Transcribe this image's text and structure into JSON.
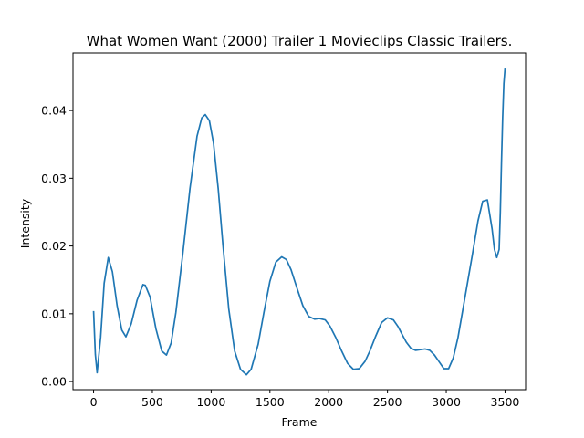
{
  "chart_data": {
    "type": "line",
    "title": "What Women Want (2000) Trailer 1  Movieclips Classic Trailers.",
    "xlabel": "Frame",
    "ylabel": "Intensity",
    "xlim": [
      -175,
      3675
    ],
    "ylim": [
      -0.0012,
      0.0485
    ],
    "xticks": [
      0,
      500,
      1000,
      1500,
      2000,
      2500,
      3000,
      3500
    ],
    "xtick_labels": [
      "0",
      "500",
      "1000",
      "1500",
      "2000",
      "2500",
      "3000",
      "3500"
    ],
    "yticks": [
      0.0,
      0.01,
      0.02,
      0.03,
      0.04
    ],
    "ytick_labels": [
      "0.00",
      "0.01",
      "0.02",
      "0.03",
      "0.04"
    ],
    "grid": false,
    "series": [
      {
        "color": "#1f77b4",
        "x": [
          0,
          15,
          30,
          60,
          90,
          125,
          160,
          200,
          240,
          275,
          320,
          370,
          420,
          440,
          480,
          530,
          580,
          620,
          660,
          700,
          760,
          820,
          880,
          920,
          950,
          985,
          1020,
          1060,
          1100,
          1150,
          1200,
          1250,
          1300,
          1340,
          1400,
          1450,
          1500,
          1550,
          1600,
          1640,
          1680,
          1730,
          1780,
          1830,
          1880,
          1920,
          1970,
          2010,
          2060,
          2110,
          2160,
          2210,
          2260,
          2310,
          2350,
          2400,
          2450,
          2500,
          2550,
          2590,
          2620,
          2660,
          2700,
          2740,
          2780,
          2820,
          2860,
          2900,
          2940,
          2980,
          3020,
          3060,
          3100,
          3130,
          3170,
          3220,
          3270,
          3310,
          3350,
          3390,
          3410,
          3430,
          3450,
          3460,
          3470,
          3480,
          3490,
          3500
        ],
        "y": [
          0.0104,
          0.004,
          0.0013,
          0.0065,
          0.0145,
          0.0183,
          0.0162,
          0.0112,
          0.0076,
          0.0066,
          0.0085,
          0.012,
          0.0143,
          0.0142,
          0.0125,
          0.0078,
          0.0045,
          0.0039,
          0.0057,
          0.0102,
          0.019,
          0.0285,
          0.0362,
          0.0389,
          0.0394,
          0.0385,
          0.0352,
          0.0285,
          0.0202,
          0.0107,
          0.0045,
          0.0018,
          0.001,
          0.0018,
          0.0055,
          0.0103,
          0.0148,
          0.0176,
          0.0184,
          0.018,
          0.0165,
          0.0138,
          0.0112,
          0.0096,
          0.0092,
          0.0093,
          0.0091,
          0.0082,
          0.0065,
          0.0045,
          0.0027,
          0.0018,
          0.0019,
          0.003,
          0.0045,
          0.0067,
          0.0087,
          0.0094,
          0.0091,
          0.0081,
          0.0071,
          0.0058,
          0.0049,
          0.0046,
          0.0047,
          0.0048,
          0.0046,
          0.0039,
          0.0029,
          0.0019,
          0.0019,
          0.0035,
          0.0065,
          0.0095,
          0.0135,
          0.0185,
          0.0237,
          0.0266,
          0.0268,
          0.0225,
          0.0195,
          0.0183,
          0.0195,
          0.025,
          0.0325,
          0.039,
          0.044,
          0.0462
        ]
      }
    ]
  }
}
